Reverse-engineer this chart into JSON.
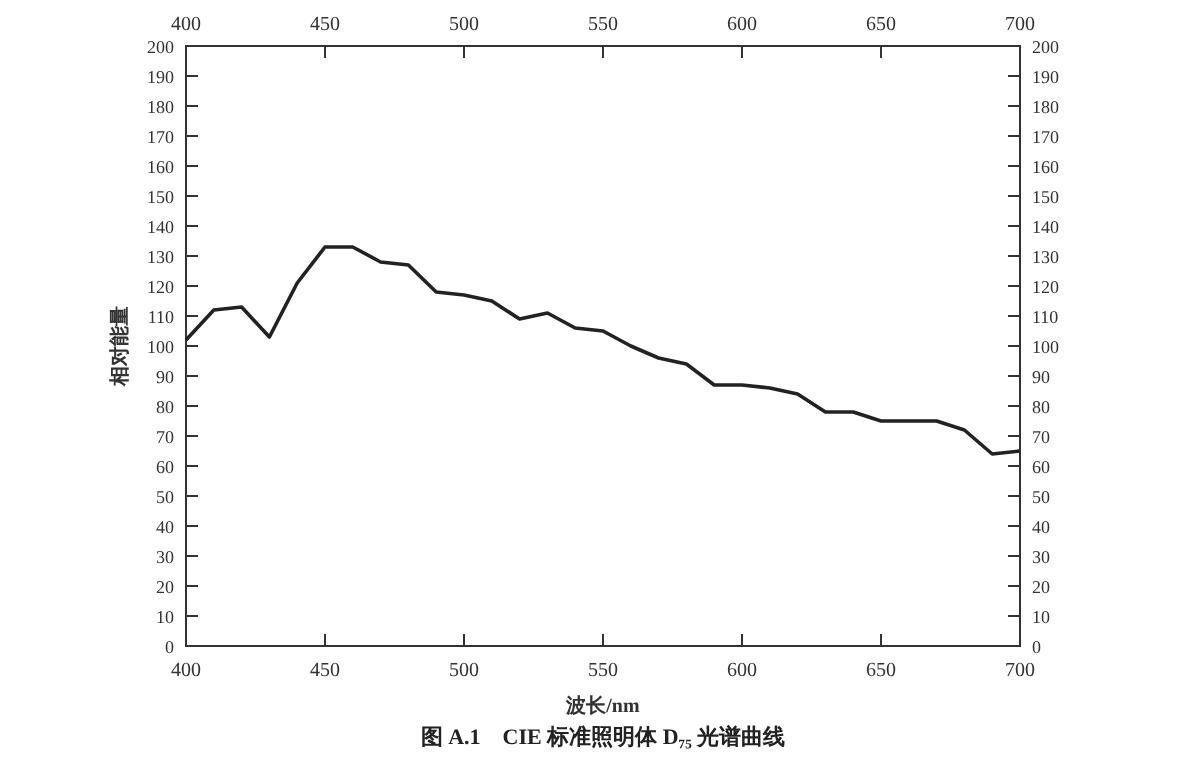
{
  "chart_data": {
    "type": "line",
    "xlabel": "波长/nm",
    "ylabel": "相对能量",
    "annotations": [
      "图 A.1　CIE 标准照明体 D₇₅ 光谱曲线"
    ],
    "x": [
      400,
      410,
      420,
      430,
      440,
      450,
      460,
      470,
      480,
      490,
      500,
      510,
      520,
      530,
      540,
      550,
      560,
      570,
      580,
      590,
      600,
      610,
      620,
      630,
      640,
      650,
      660,
      670,
      680,
      690,
      700
    ],
    "series": [
      {
        "color": "#222222",
        "values": [
          102,
          112,
          113,
          103,
          121,
          133,
          133,
          128,
          127,
          118,
          117,
          115,
          109,
          111,
          106,
          105,
          100,
          96,
          94,
          87,
          87,
          86,
          84,
          78,
          78,
          75,
          75,
          75,
          72,
          64,
          65
        ]
      }
    ],
    "xlim": [
      400,
      700
    ],
    "xticks": [
      400,
      450,
      500,
      550,
      600,
      650,
      700
    ],
    "x2lim": [
      400,
      700
    ],
    "x2ticks": [
      400,
      450,
      500,
      550,
      600,
      650,
      700
    ],
    "ylim": [
      0,
      200
    ],
    "yticks": [
      0,
      10,
      20,
      30,
      40,
      50,
      60,
      70,
      80,
      90,
      100,
      110,
      120,
      130,
      140,
      150,
      160,
      170,
      180,
      190,
      200
    ],
    "y2lim": [
      0,
      200
    ],
    "y2ticks": [
      0,
      10,
      20,
      30,
      40,
      50,
      60,
      70,
      80,
      90,
      100,
      110,
      120,
      130,
      140,
      150,
      160,
      170,
      180,
      190,
      200
    ],
    "grid": false,
    "marker": "none",
    "line_style": "solid"
  }
}
